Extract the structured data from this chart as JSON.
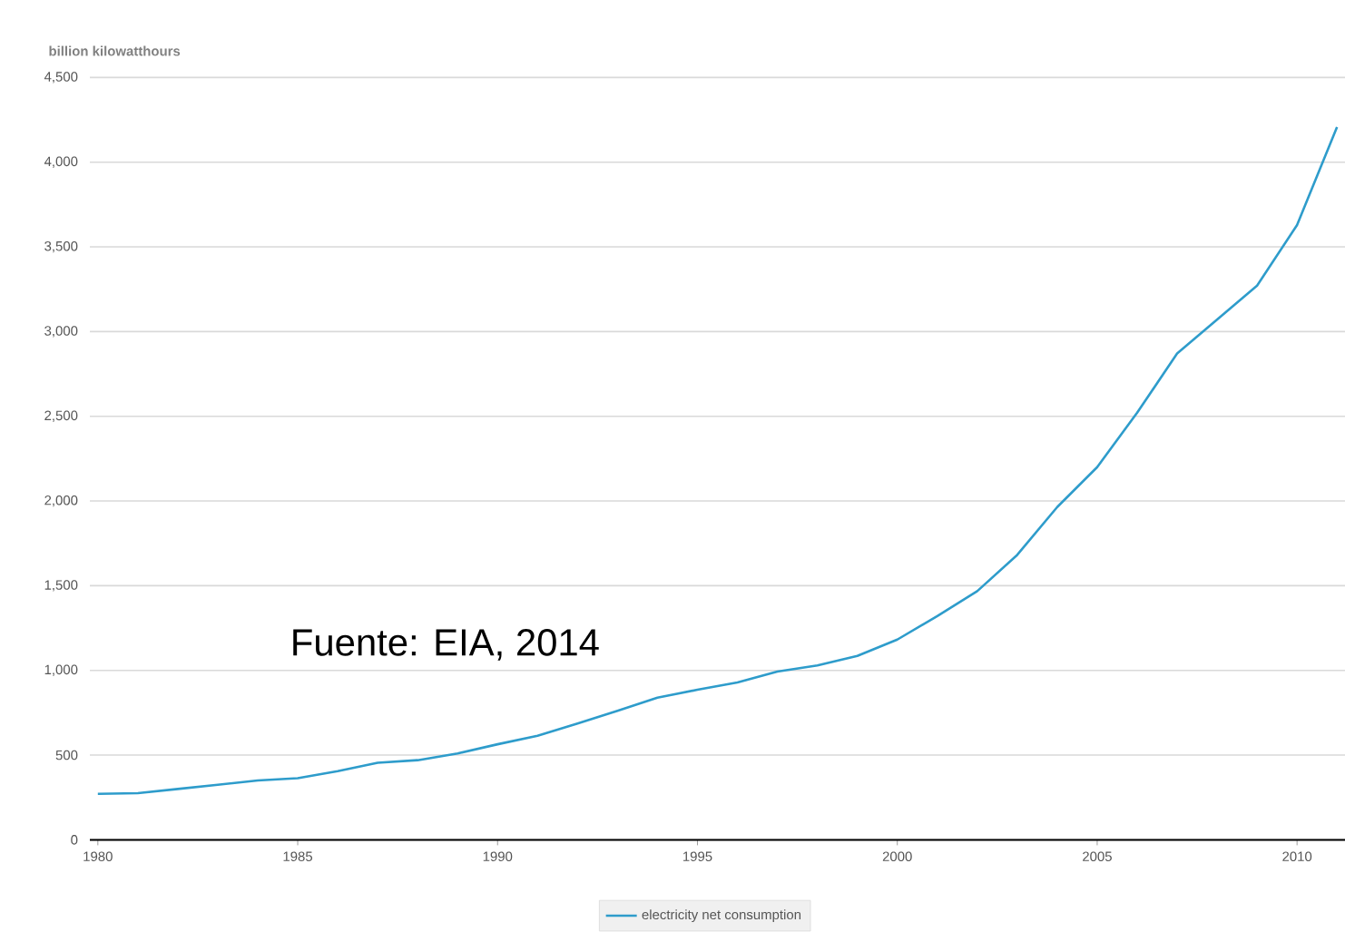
{
  "chart_data": {
    "type": "line",
    "ylabel": "billion kilowatthours",
    "x": [
      1980,
      1981,
      1982,
      1983,
      1984,
      1985,
      1986,
      1987,
      1988,
      1989,
      1990,
      1991,
      1992,
      1993,
      1994,
      1995,
      1996,
      1997,
      1998,
      1999,
      2000,
      2001,
      2002,
      2003,
      2004,
      2005,
      2006,
      2007,
      2008,
      2009,
      2010,
      2011
    ],
    "series": [
      {
        "name": "electricity net consumption",
        "color": "#2e9ccb",
        "values": [
          271,
          275,
          300,
          325,
          350,
          364,
          405,
          455,
          470,
          510,
          564,
          614,
          686,
          761,
          839,
          886,
          929,
          993,
          1029,
          1086,
          1182,
          1321,
          1468,
          1682,
          1964,
          2200,
          2521,
          2871,
          3071,
          3271,
          3629,
          4207
        ]
      }
    ],
    "xlim": [
      1979.8,
      2011.2
    ],
    "ylim": [
      0,
      4500
    ],
    "xticks": [
      1980,
      1985,
      1990,
      1995,
      2000,
      2005,
      2010
    ],
    "yticks": [
      0,
      {
        "value": 500,
        "label": "500"
      },
      {
        "value": 1000,
        "label": "1,000"
      },
      {
        "value": 1500,
        "label": "1,500"
      },
      {
        "value": 2000,
        "label": "2,000"
      },
      {
        "value": 2500,
        "label": "2,500"
      },
      {
        "value": 3000,
        "label": "3,000"
      },
      {
        "value": 3500,
        "label": "3,500"
      },
      {
        "value": 4000,
        "label": "4,000"
      },
      {
        "value": 4500,
        "label": "4,500"
      }
    ],
    "grid": "y",
    "legend": "bottom",
    "annotations": [
      "Fuente: EIA, 2014"
    ]
  }
}
